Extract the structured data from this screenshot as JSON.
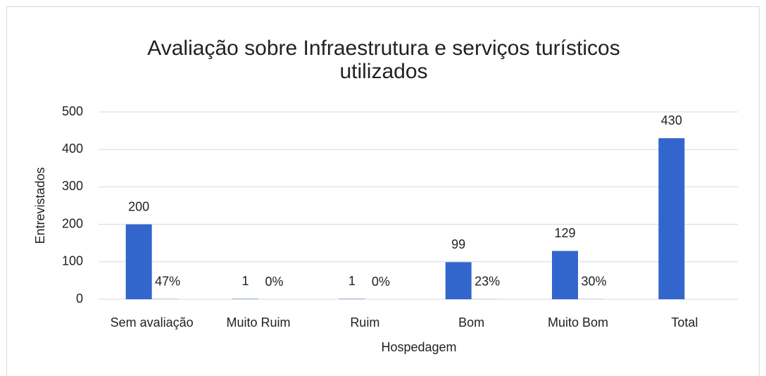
{
  "chart_data": {
    "type": "bar",
    "title": "Avaliação sobre Infraestrutura e serviços turísticos utilizados",
    "x_label": "Hospedagem",
    "y_label": "Entrevistados",
    "categories": [
      "Sem avaliação",
      "Muito Ruim",
      "Ruim",
      "Bom",
      "Muito Bom",
      "Total"
    ],
    "series": [
      {
        "color": "#3366cc",
        "values": [
          200,
          1,
          1,
          99,
          129,
          430
        ]
      },
      {
        "color": "#3366cc",
        "values": [
          0.47,
          0,
          0,
          0.23,
          0.3,
          null
        ],
        "value_labels": [
          "47%",
          "0%",
          "0%",
          "23%",
          "30%",
          null
        ]
      }
    ],
    "ylim": [
      0,
      500
    ],
    "yticks": [
      0,
      100,
      200,
      300,
      400,
      500
    ],
    "grid": true
  }
}
